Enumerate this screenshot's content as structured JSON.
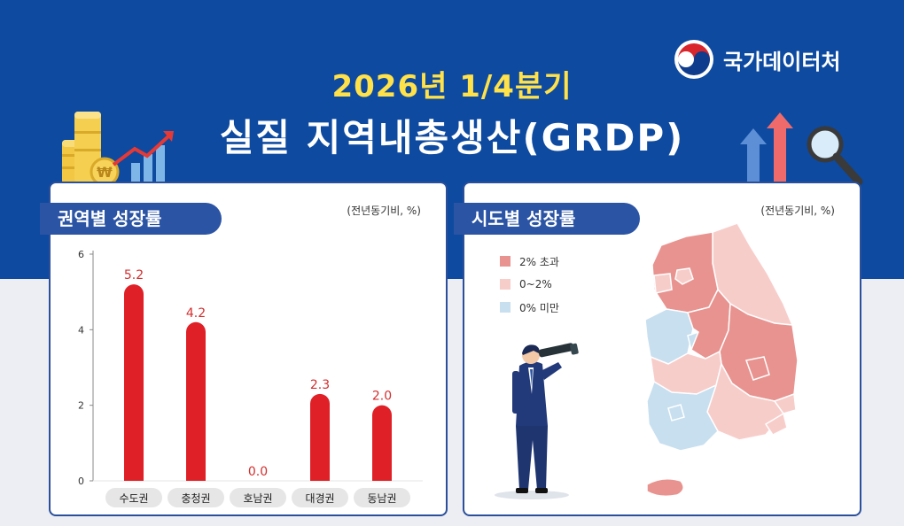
{
  "brand": {
    "name": "국가데이터처"
  },
  "header": {
    "year_title": "2026년 1/4분기",
    "main_title": "실질 지역내총생산(GRDP)"
  },
  "left_panel": {
    "tag": "권역별 성장률",
    "unit": "(전년동기비, %)"
  },
  "right_panel": {
    "tag": "시도별 성장률",
    "unit": "(전년동기비, %)",
    "legend": [
      {
        "label": "2% 초과",
        "color": "#e8938f"
      },
      {
        "label": "0~2%",
        "color": "#f7cdca"
      },
      {
        "label": "0% 미만",
        "color": "#c7dfef"
      }
    ]
  },
  "chart_data": {
    "type": "bar",
    "categories": [
      "수도권",
      "충청권",
      "호남권",
      "대경권",
      "동남권"
    ],
    "values": [
      5.2,
      4.2,
      0.0,
      2.3,
      2.0
    ],
    "value_labels": [
      "5.2",
      "4.2",
      "0.0",
      "2.3",
      "2.0"
    ],
    "title": "",
    "xlabel": "",
    "ylabel": "",
    "ylim": [
      0,
      6
    ],
    "yticks": [
      0,
      2,
      4,
      6
    ],
    "bar_color": "#e02027",
    "grid": false
  }
}
